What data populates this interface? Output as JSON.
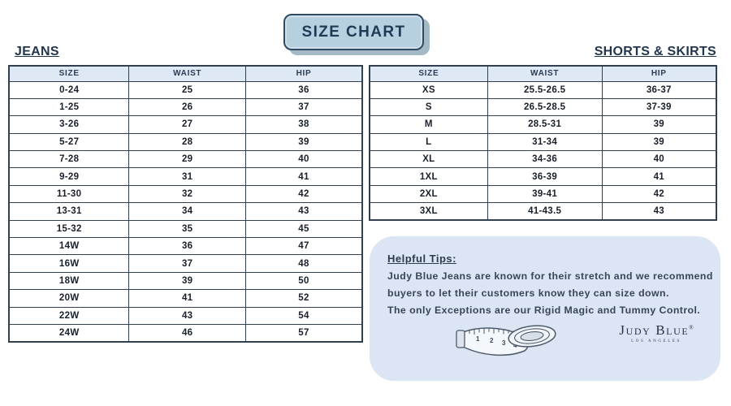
{
  "title": "SIZE CHART",
  "jeans": {
    "heading": "JEANS",
    "columns": [
      "SIZE",
      "WAIST",
      "HIP"
    ],
    "rows": [
      [
        "0-24",
        "25",
        "36"
      ],
      [
        "1-25",
        "26",
        "37"
      ],
      [
        "3-26",
        "27",
        "38"
      ],
      [
        "5-27",
        "28",
        "39"
      ],
      [
        "7-28",
        "29",
        "40"
      ],
      [
        "9-29",
        "31",
        "41"
      ],
      [
        "11-30",
        "32",
        "42"
      ],
      [
        "13-31",
        "34",
        "43"
      ],
      [
        "15-32",
        "35",
        "45"
      ],
      [
        "14W",
        "36",
        "47"
      ],
      [
        "16W",
        "37",
        "48"
      ],
      [
        "18W",
        "39",
        "50"
      ],
      [
        "20W",
        "41",
        "52"
      ],
      [
        "22W",
        "43",
        "54"
      ],
      [
        "24W",
        "46",
        "57"
      ]
    ]
  },
  "shorts_skirts": {
    "heading": "SHORTS & SKIRTS",
    "columns": [
      "SIZE",
      "WAIST",
      "HIP"
    ],
    "rows": [
      [
        "XS",
        "25.5-26.5",
        "36-37"
      ],
      [
        "S",
        "26.5-28.5",
        "37-39"
      ],
      [
        "M",
        "28.5-31",
        "39"
      ],
      [
        "L",
        "31-34",
        "39"
      ],
      [
        "XL",
        "34-36",
        "40"
      ],
      [
        "1XL",
        "36-39",
        "41"
      ],
      [
        "2XL",
        "39-41",
        "42"
      ],
      [
        "3XL",
        "41-43.5",
        "43"
      ]
    ]
  },
  "tips": {
    "heading": "Helpful Tips:",
    "lines": [
      "Judy Blue Jeans are known for their stretch and we recommend",
      "buyers to let their customers know they can size down.",
      "The only Exceptions are our Rigid Magic and Tummy Control."
    ]
  },
  "brand": {
    "name": "Judy Blue",
    "registered": "®",
    "subtext": "LOS ANGELES"
  },
  "icons": {
    "measuring_tape": "measuring-tape-icon"
  },
  "colors": {
    "heading_navy": "#22364e",
    "table_border": "#313f4e",
    "header_row_bg": "#dfe9f6",
    "title_box_bg": "#b6d0e0",
    "title_box_border": "#2e4b63",
    "title_box_shadow": "#a4b9c6",
    "tips_box_bg": "#dbe5f4"
  }
}
